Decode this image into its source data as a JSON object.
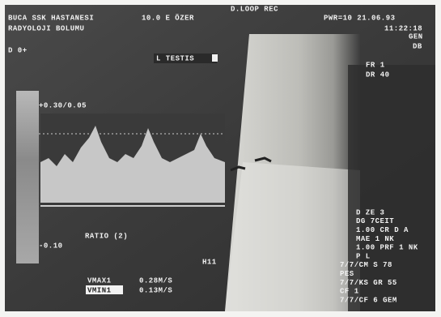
{
  "header": {
    "mode": "D.LOOP REC",
    "hospital": "BUCA SSK HASTANESI",
    "probe": "10.0 E ÖZER",
    "power_date": "PWR=10 21.06.93",
    "department": "RADYOLOJI BOLUMU",
    "time": "11:22:18",
    "gain": "GEN",
    "depth": "DB"
  },
  "left": {
    "doppler_label": "D 0+",
    "scale_top": "+0.30/0.05",
    "scale_bottom": "-0.10",
    "ratio": "RATIO (2)"
  },
  "image": {
    "label": "L TESTIS",
    "marker": "H11"
  },
  "right_params": {
    "fr": "FR 1",
    "dr": "DR 40",
    "lines": [
      "D ZE 3",
      "DG 7CEIT",
      "1.00 CR D A",
      "MAE 1 NK",
      "1.00 PRF 1 NK",
      "P L",
      "7/7/CM S 78",
      "PES",
      "7/7/KS GR 55",
      "CF 1",
      "7/7/CF 6 GEM"
    ]
  },
  "measurements": [
    {
      "name": "VMAX1",
      "value": "0.28M/S"
    },
    {
      "name": "VMIN1",
      "value": "0.13M/S"
    }
  ]
}
